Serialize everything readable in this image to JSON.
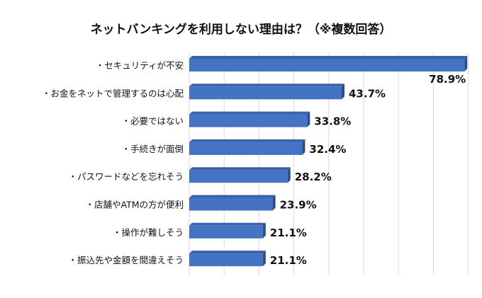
{
  "chart_data": {
    "type": "bar",
    "orientation": "horizontal",
    "title": "ネットバンキングを利用しない理由は？（※複数回答）",
    "categories": [
      "・セキュリティが不安",
      "・お金をネットで管理するのは心配",
      "・必要ではない",
      "・手続きが面倒",
      "・パスワードなどを忘れそう",
      "・店舗やATMの方が便利",
      "・操作が難しそう",
      "・振込先や金額を間違えそう"
    ],
    "values": [
      78.9,
      43.7,
      33.8,
      32.4,
      28.2,
      23.9,
      21.1,
      21.1
    ],
    "labels": [
      "78.9%",
      "43.7%",
      "33.8%",
      "32.4%",
      "28.2%",
      "23.9%",
      "21.1%",
      "21.1%"
    ],
    "xlim": [
      0,
      82
    ],
    "grid_step": 10,
    "grid": true,
    "bar_color": "#4472C4",
    "xlabel": "",
    "ylabel": ""
  }
}
